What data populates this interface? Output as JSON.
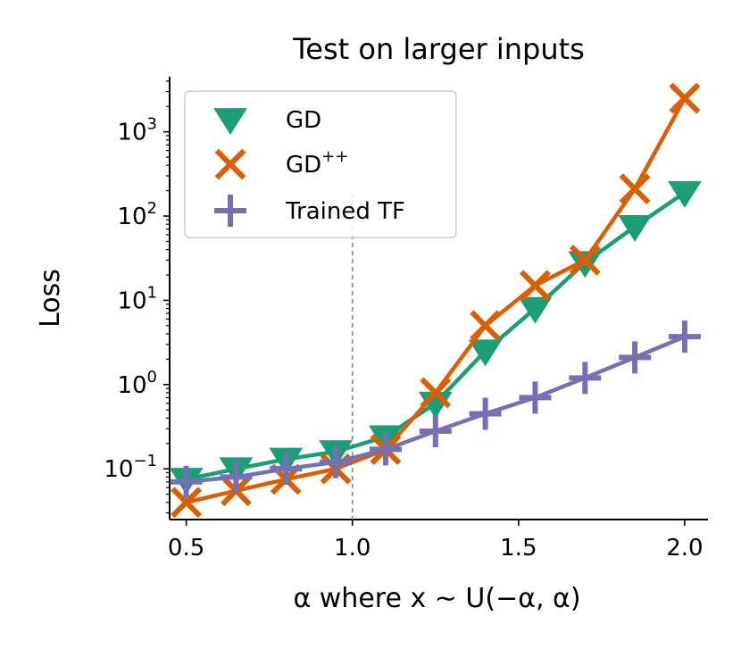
{
  "chart_data": {
    "type": "line",
    "title": "Test on larger inputs",
    "xlabel": "α   where x ∼ U(−α, α)",
    "ylabel": "Loss",
    "xlim": [
      0.45,
      2.07
    ],
    "ylim": [
      0.025,
      4500
    ],
    "yscale": "log",
    "xticks": [
      0.5,
      1.0,
      1.5,
      2.0
    ],
    "xtick_labels": [
      "0.5",
      "1.0",
      "1.5",
      "2.0"
    ],
    "yticks": [
      0.1,
      1,
      10,
      100,
      1000
    ],
    "ytick_labels": [
      {
        "base": "10",
        "exp": "−1"
      },
      {
        "base": "10",
        "exp": "0"
      },
      {
        "base": "10",
        "exp": "1"
      },
      {
        "base": "10",
        "exp": "2"
      },
      {
        "base": "10",
        "exp": "3"
      }
    ],
    "vline": 1.0,
    "grid": false,
    "legend_position": "top-left",
    "x": [
      0.5,
      0.65,
      0.8,
      0.95,
      1.1,
      1.25,
      1.4,
      1.55,
      1.7,
      1.85,
      2.0
    ],
    "series": [
      {
        "name": "GD",
        "legend_base": "GD",
        "legend_sup": "",
        "color": "#1b9e77",
        "marker": "triangle-down",
        "values": [
          0.075,
          0.1,
          0.13,
          0.16,
          0.24,
          0.6,
          2.5,
          8,
          28,
          75,
          190
        ]
      },
      {
        "name": "GD++",
        "legend_base": "GD",
        "legend_sup": "++",
        "color": "#d95f02",
        "marker": "x",
        "values": [
          0.04,
          0.055,
          0.075,
          0.1,
          0.17,
          0.8,
          5,
          15,
          30,
          210,
          2500
        ]
      },
      {
        "name": "Trained TF",
        "legend_base": "Trained TF",
        "legend_sup": "",
        "color": "#7570b3",
        "marker": "plus",
        "values": [
          0.07,
          0.08,
          0.1,
          0.12,
          0.17,
          0.28,
          0.45,
          0.7,
          1.2,
          2.1,
          3.7
        ]
      }
    ]
  }
}
